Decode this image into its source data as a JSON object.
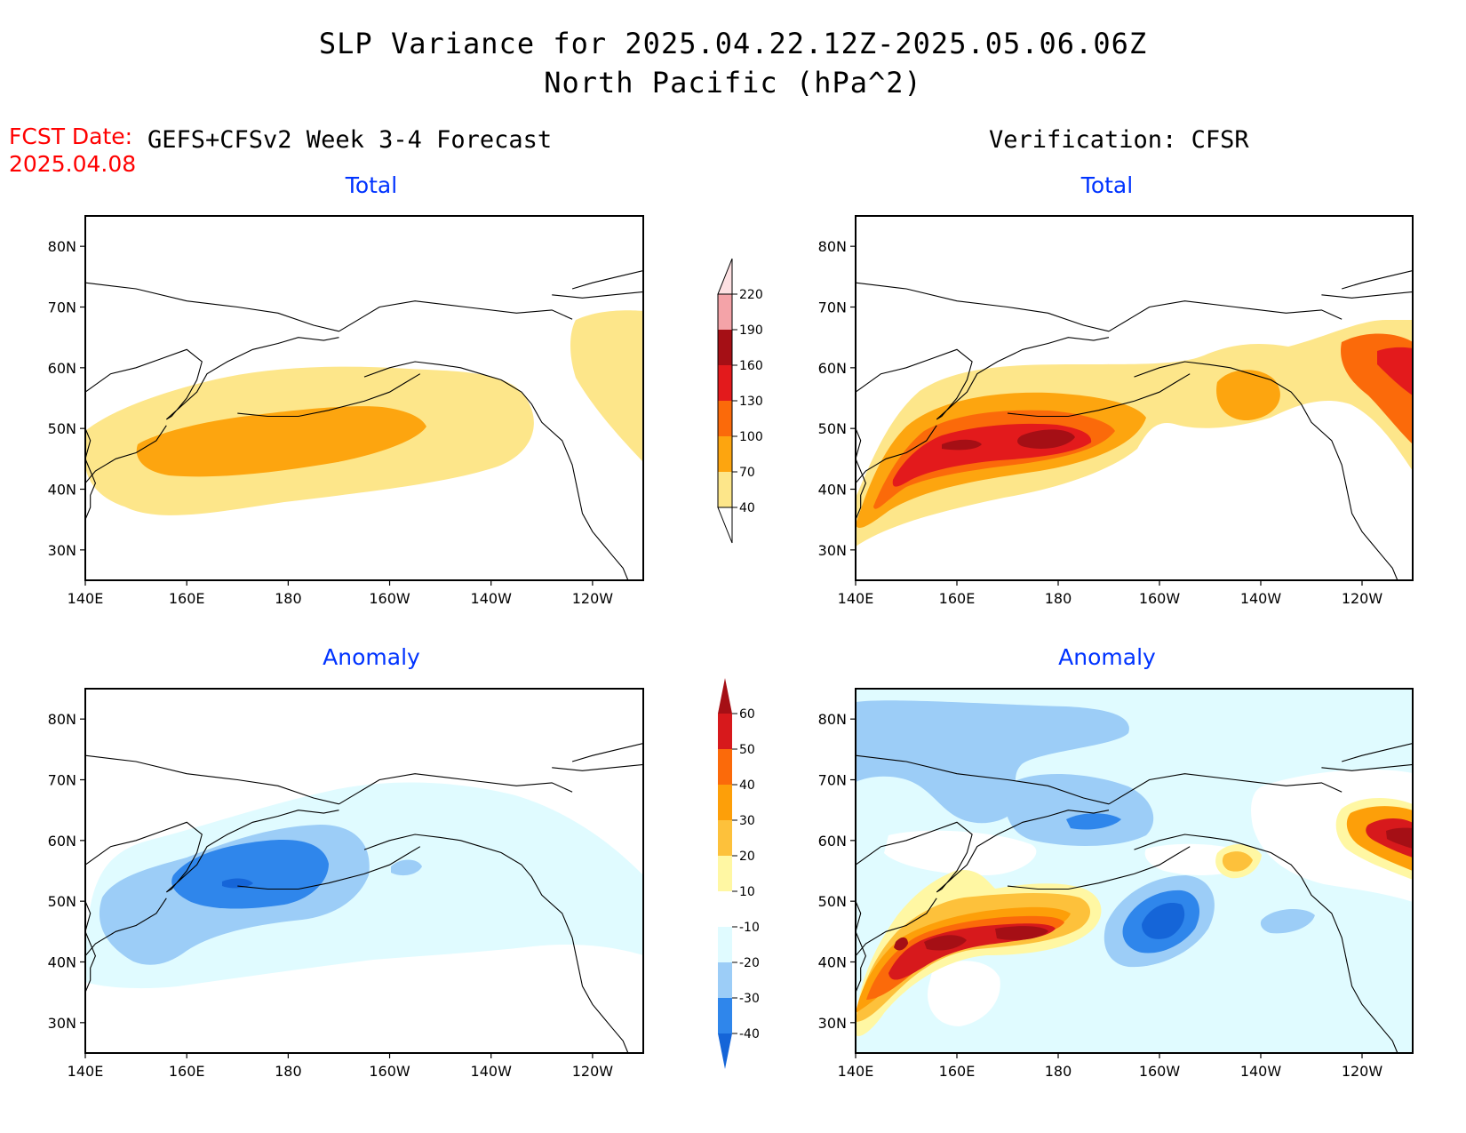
{
  "title": {
    "line1": "SLP Variance for 2025.04.22.12Z-2025.05.06.06Z",
    "line2": "North Pacific (hPa^2)"
  },
  "forecast_info": {
    "date_label": "FCST Date:",
    "date_value": "2025.04.08",
    "left_column_title": "GEFS+CFSv2 Week 3-4 Forecast",
    "right_column_title": "Verification: CFSR"
  },
  "panels": {
    "top_left_title": "Total",
    "top_right_title": "Total",
    "bottom_left_title": "Anomaly",
    "bottom_right_title": "Anomaly"
  },
  "axes": {
    "lat_labels": [
      "80N",
      "70N",
      "60N",
      "50N",
      "40N",
      "30N"
    ],
    "lat_values": [
      80,
      70,
      60,
      50,
      40,
      30
    ],
    "lon_labels": [
      "140E",
      "160E",
      "180",
      "160W",
      "140W",
      "120W"
    ],
    "lon_values": [
      140,
      160,
      180,
      200,
      220,
      240
    ],
    "lon_range": [
      140,
      250
    ],
    "lat_range": [
      25,
      85
    ]
  },
  "colorbars": {
    "total": {
      "levels": [
        "40",
        "70",
        "100",
        "130",
        "160",
        "190",
        "220"
      ],
      "colors": [
        "#fde68a",
        "#fda50f",
        "#fb6a0a",
        "#e31a1c",
        "#a50f15",
        "#f4a3a8",
        "#fde0e2"
      ]
    },
    "anomaly": {
      "levels": [
        "-40",
        "-30",
        "-20",
        "-10",
        "10",
        "20",
        "30",
        "40",
        "50",
        "60"
      ],
      "colors": [
        "#1565d8",
        "#2f86eb",
        "#9ccdf7",
        "#e0fbff",
        "#ffffff",
        "#fff7a3",
        "#fdc13b",
        "#fd9f09",
        "#fb6a0a",
        "#d7191c",
        "#a50f15"
      ]
    }
  }
}
